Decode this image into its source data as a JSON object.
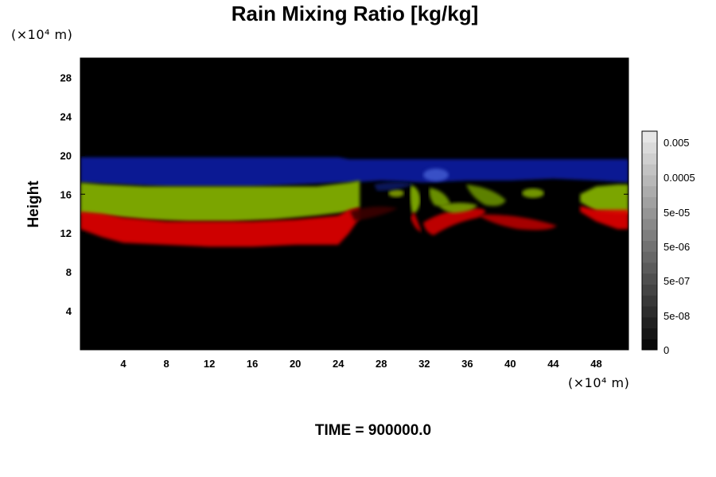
{
  "chart_data": {
    "type": "heatmap",
    "title": "Rain Mixing Ratio [kg/kg]",
    "ylabel": "Height",
    "x_unit": "(×10⁴ m)",
    "y_unit": "(×10⁴ m)",
    "footer": "TIME = 900000.0",
    "xlim": [
      0,
      51
    ],
    "ylim": [
      0,
      30
    ],
    "x_ticks": [
      "4",
      "8",
      "12",
      "16",
      "20",
      "24",
      "28",
      "32",
      "36",
      "40",
      "44",
      "48"
    ],
    "y_ticks": [
      "4",
      "8",
      "12",
      "16",
      "20",
      "24",
      "28"
    ],
    "colorbar": {
      "labels": [
        "0.005",
        "0.0005",
        "5e-05",
        "5e-06",
        "5e-07",
        "5e-08",
        "0"
      ],
      "levels": 20
    },
    "bands": [
      {
        "color": "#0a1ea0",
        "x": [
          0,
          4,
          8,
          12,
          16,
          20,
          24,
          25,
          28,
          32,
          36,
          40,
          44,
          48,
          51
        ],
        "top": [
          19.8,
          19.8,
          19.8,
          19.8,
          19.8,
          19.8,
          19.8,
          19.6,
          19.6,
          19.6,
          19.6,
          19.6,
          19.6,
          19.6,
          19.6
        ],
        "bottom": [
          17.2,
          17.0,
          16.8,
          16.8,
          16.8,
          17.0,
          17.2,
          17.2,
          17.4,
          17.2,
          17.4,
          17.4,
          17.6,
          17.4,
          17.2
        ]
      },
      {
        "color": "#86b400",
        "x": [
          0,
          2,
          6,
          10,
          14,
          18,
          22,
          25,
          26
        ],
        "top": [
          17.2,
          17.0,
          16.8,
          16.8,
          16.8,
          16.8,
          16.8,
          17.2,
          17.4
        ],
        "bottom": [
          14.0,
          13.8,
          13.4,
          13.2,
          13.2,
          13.4,
          13.8,
          14.2,
          14.6
        ]
      },
      {
        "color": "#e00000",
        "x": [
          0,
          2,
          4,
          8,
          12,
          16,
          20,
          24,
          25,
          26
        ],
        "top": [
          14.2,
          14.0,
          13.6,
          13.2,
          13.2,
          13.2,
          13.4,
          13.8,
          14.4,
          14.6
        ],
        "bottom": [
          12.4,
          11.6,
          11.0,
          10.8,
          10.6,
          10.6,
          10.8,
          10.8,
          12.0,
          13.6
        ]
      },
      {
        "color": "#86b400",
        "x": [
          46.5,
          48,
          50,
          51
        ],
        "top": [
          16.0,
          16.8,
          17.0,
          17.0
        ],
        "bottom": [
          15.2,
          14.2,
          14.0,
          14.0
        ]
      },
      {
        "color": "#e00000",
        "x": [
          46.5,
          48,
          50,
          51
        ],
        "top": [
          14.8,
          14.4,
          14.4,
          14.4
        ],
        "bottom": [
          14.2,
          13.2,
          12.4,
          12.4
        ]
      }
    ]
  }
}
